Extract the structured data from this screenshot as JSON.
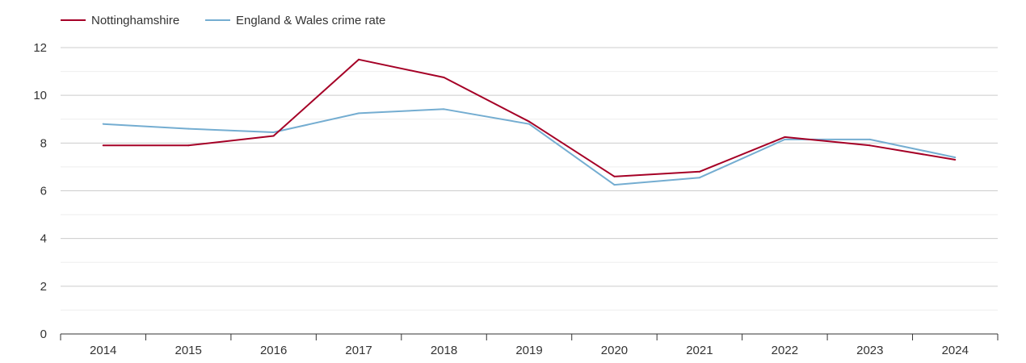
{
  "chart_data": {
    "type": "line",
    "categories": [
      "2014",
      "2015",
      "2016",
      "2017",
      "2018",
      "2019",
      "2020",
      "2021",
      "2022",
      "2023",
      "2024"
    ],
    "series": [
      {
        "name": "Nottinghamshire",
        "color": "#a50026",
        "values": [
          7.9,
          7.9,
          8.3,
          11.5,
          10.75,
          8.9,
          6.6,
          6.8,
          8.25,
          7.9,
          7.3
        ]
      },
      {
        "name": "England & Wales crime rate",
        "color": "#74add1",
        "values": [
          8.8,
          8.6,
          8.45,
          9.25,
          9.42,
          8.8,
          6.25,
          6.55,
          8.15,
          8.15,
          7.4
        ]
      }
    ],
    "ylim": [
      0,
      12
    ],
    "yticks": [
      "0",
      "2",
      "4",
      "6",
      "8",
      "10",
      "12"
    ],
    "title": "",
    "xlabel": "",
    "ylabel": "",
    "grid": true,
    "legend_position": "top-left"
  }
}
